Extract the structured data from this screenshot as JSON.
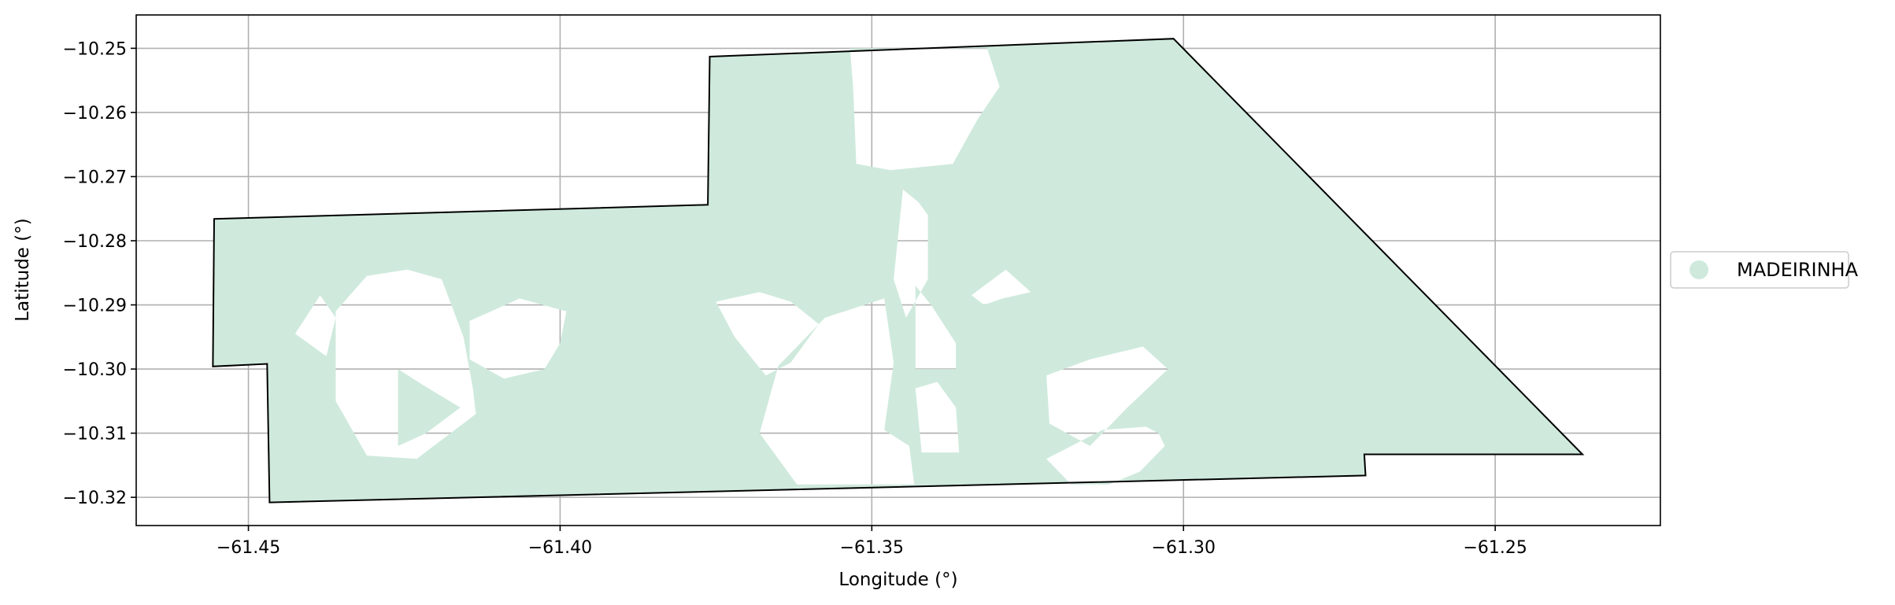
{
  "chart_data": {
    "type": "map",
    "xlabel": "Longitude (°)",
    "ylabel": "Latitude (°)",
    "xlim": [
      -61.468,
      -61.2235
    ],
    "ylim": [
      -10.3244,
      -10.2448
    ],
    "xticks": [
      -61.45,
      -61.4,
      -61.35,
      -61.3,
      -61.25
    ],
    "xtick_labels": [
      "−61.45",
      "−61.40",
      "−61.35",
      "−61.30",
      "−61.25"
    ],
    "yticks": [
      -10.25,
      -10.26,
      -10.27,
      -10.28,
      -10.29,
      -10.3,
      -10.31,
      -10.32
    ],
    "ytick_labels": [
      "−10.25",
      "−10.26",
      "−10.27",
      "−10.28",
      "−10.29",
      "−10.30",
      "−10.31",
      "−10.32"
    ],
    "grid": true,
    "legend": {
      "placement": "right",
      "entries": [
        {
          "label": "MADEIRINHA",
          "color": "#cfeadd"
        }
      ]
    },
    "fill_color": "#cfeadd",
    "boundary_color": "#000000",
    "boundary": [
      [
        -61.4555,
        -10.2766
      ],
      [
        -61.3763,
        -10.2744
      ],
      [
        -61.376,
        -10.2513
      ],
      [
        -61.3016,
        -10.2485
      ],
      [
        -61.236,
        -10.3133
      ],
      [
        -61.271,
        -10.3133
      ],
      [
        -61.2708,
        -10.3166
      ],
      [
        -61.4466,
        -10.3208
      ],
      [
        -61.447,
        -10.2992
      ],
      [
        -61.4557,
        -10.2996
      ]
    ],
    "holes": [
      [
        [
          -61.3535,
          -10.25
        ],
        [
          -61.353,
          -10.256
        ],
        [
          -61.3525,
          -10.268
        ],
        [
          -61.347,
          -10.269
        ],
        [
          -61.337,
          -10.268
        ],
        [
          -61.333,
          -10.261
        ],
        [
          -61.3295,
          -10.256
        ],
        [
          -61.3315,
          -10.25
        ]
      ],
      [
        [
          -61.436,
          -10.291
        ],
        [
          -61.431,
          -10.2855
        ],
        [
          -61.4245,
          -10.2845
        ],
        [
          -61.419,
          -10.286
        ],
        [
          -61.4155,
          -10.295
        ],
        [
          -61.414,
          -10.303
        ],
        [
          -61.4135,
          -10.307
        ],
        [
          -61.423,
          -10.314
        ],
        [
          -61.431,
          -10.3135
        ],
        [
          -61.436,
          -10.305
        ]
      ],
      [
        [
          -61.4425,
          -10.2945
        ],
        [
          -61.4405,
          -10.2915
        ],
        [
          -61.4385,
          -10.2885
        ],
        [
          -61.436,
          -10.292
        ],
        [
          -61.4375,
          -10.298
        ]
      ],
      [
        [
          -61.426,
          -10.3
        ],
        [
          -61.426,
          -10.312
        ],
        [
          -61.4215,
          -10.31
        ],
        [
          -61.416,
          -10.306
        ],
        [
          -61.422,
          -10.3025
        ]
      ],
      [
        [
          -61.4145,
          -10.2925
        ],
        [
          -61.4065,
          -10.289
        ],
        [
          -61.399,
          -10.291
        ],
        [
          -61.4,
          -10.296
        ],
        [
          -61.4025,
          -10.3
        ],
        [
          -61.409,
          -10.3015
        ],
        [
          -61.4145,
          -10.2985
        ]
      ],
      [
        [
          -61.375,
          -10.2895
        ],
        [
          -61.368,
          -10.288
        ],
        [
          -61.363,
          -10.2895
        ],
        [
          -61.3585,
          -10.293
        ],
        [
          -61.363,
          -10.299
        ],
        [
          -61.367,
          -10.301
        ],
        [
          -61.372,
          -10.295
        ]
      ],
      [
        [
          -61.365,
          -10.2995
        ],
        [
          -61.3575,
          -10.292
        ],
        [
          -61.348,
          -10.289
        ],
        [
          -61.3465,
          -10.299
        ],
        [
          -61.348,
          -10.3095
        ],
        [
          -61.344,
          -10.312
        ],
        [
          -61.3432,
          -10.318
        ],
        [
          -61.362,
          -10.318
        ],
        [
          -61.368,
          -10.31
        ]
      ],
      [
        [
          -61.345,
          -10.272
        ],
        [
          -61.3425,
          -10.274
        ],
        [
          -61.341,
          -10.276
        ],
        [
          -61.341,
          -10.286
        ],
        [
          -61.3445,
          -10.292
        ],
        [
          -61.3465,
          -10.286
        ]
      ],
      [
        [
          -61.343,
          -10.287
        ],
        [
          -61.343,
          -10.3
        ],
        [
          -61.3365,
          -10.3
        ],
        [
          -61.3365,
          -10.296
        ],
        [
          -61.3405,
          -10.29
        ]
      ],
      [
        [
          -61.334,
          -10.2885
        ],
        [
          -61.3285,
          -10.2845
        ],
        [
          -61.3245,
          -10.288
        ],
        [
          -61.329,
          -10.289
        ],
        [
          -61.332,
          -10.29
        ]
      ],
      [
        [
          -61.343,
          -10.303
        ],
        [
          -61.342,
          -10.313
        ],
        [
          -61.336,
          -10.313
        ],
        [
          -61.3365,
          -10.306
        ],
        [
          -61.3395,
          -10.302
        ]
      ],
      [
        [
          -61.322,
          -10.301
        ],
        [
          -61.315,
          -10.2985
        ],
        [
          -61.3065,
          -10.2965
        ],
        [
          -61.3025,
          -10.3
        ],
        [
          -61.309,
          -10.306
        ],
        [
          -61.315,
          -10.312
        ],
        [
          -61.3215,
          -10.3085
        ]
      ],
      [
        [
          -61.322,
          -10.314
        ],
        [
          -61.32,
          -10.316
        ],
        [
          -61.318,
          -10.318
        ],
        [
          -61.312,
          -10.318
        ],
        [
          -61.307,
          -10.316
        ],
        [
          -61.303,
          -10.312
        ],
        [
          -61.304,
          -10.31
        ],
        [
          -61.306,
          -10.309
        ],
        [
          -61.313,
          -10.3095
        ],
        [
          -61.319,
          -10.3125
        ]
      ]
    ]
  }
}
